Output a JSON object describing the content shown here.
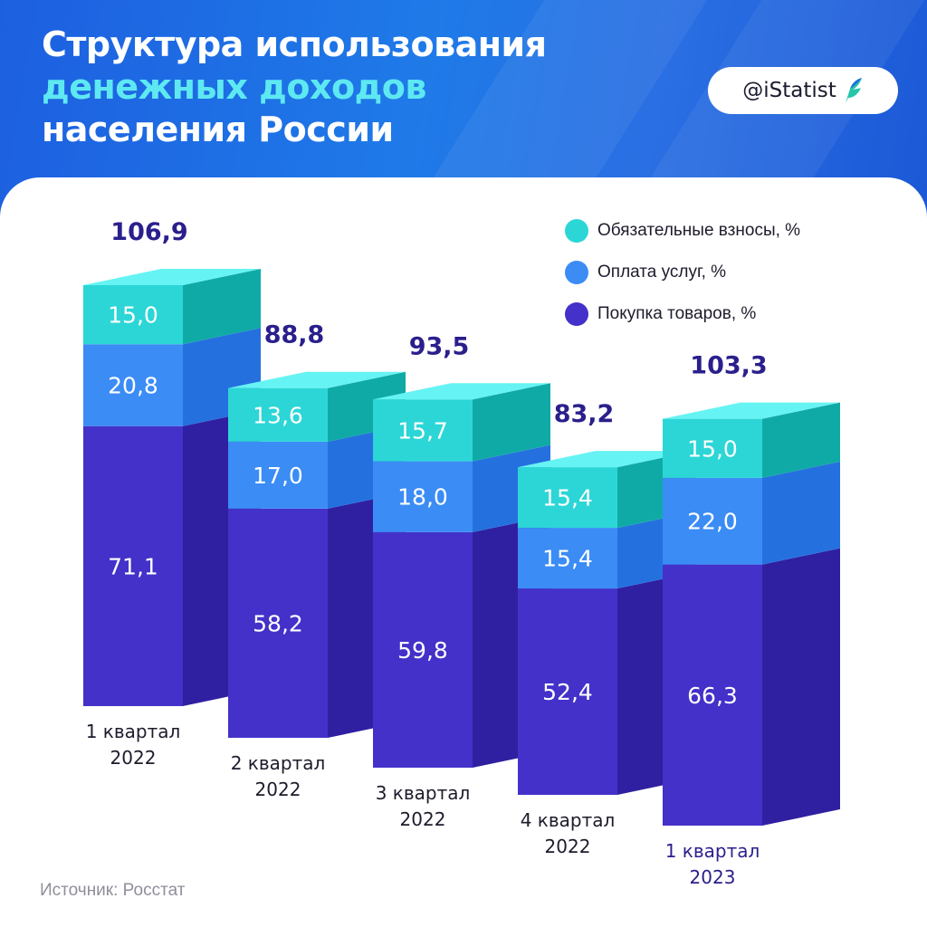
{
  "title": {
    "line1": "Структура использования",
    "line2": "денежных доходов",
    "line3": "населения России"
  },
  "brand": {
    "handle": "@iStatist",
    "icon": "istatist-leaf-logo-icon"
  },
  "source": "Источник: Росстат",
  "colors": {
    "header": "#1f6fe5",
    "accent_title": "#5ee9f2",
    "total_label": "#2a1f8c",
    "last_category_label": "#2a1f8c"
  },
  "legend": [
    {
      "label": "Обязательные взносы, %",
      "color": "#2cd6d6"
    },
    {
      "label": "Оплата услуг, %",
      "color": "#3b8cf5"
    },
    {
      "label": "Покупка товаров, %",
      "color": "#4331c9"
    }
  ],
  "chart_data": {
    "type": "bar",
    "stacked": true,
    "categories": [
      "1 квартал\n2022",
      "2 квартал\n2022",
      "3 квартал\n2022",
      "4 квартал\n2022",
      "1 квартал\n2023"
    ],
    "series": [
      {
        "name": "Покупка товаров, %",
        "values": [
          71.1,
          58.2,
          59.8,
          52.4,
          66.3
        ],
        "labels": [
          "71,1",
          "58,2",
          "59,8",
          "52,4",
          "66,3"
        ]
      },
      {
        "name": "Оплата услуг, %",
        "values": [
          20.8,
          17.0,
          18.0,
          15.4,
          22.0
        ],
        "labels": [
          "20,8",
          "17,0",
          "18,0",
          "15,4",
          "22,0"
        ]
      },
      {
        "name": "Обязательные взносы, %",
        "values": [
          15.0,
          13.6,
          15.7,
          15.4,
          15.0
        ],
        "labels": [
          "15,0",
          "13,6",
          "15,7",
          "15,4",
          "15,0"
        ]
      }
    ],
    "totals": [
      106.9,
      88.8,
      93.5,
      83.2,
      103.3
    ],
    "total_labels": [
      "106,9",
      "88,8",
      "93,5",
      "83,2",
      "103,3"
    ],
    "style": "3d-columns",
    "grid": false,
    "legend_position": "top-right"
  }
}
